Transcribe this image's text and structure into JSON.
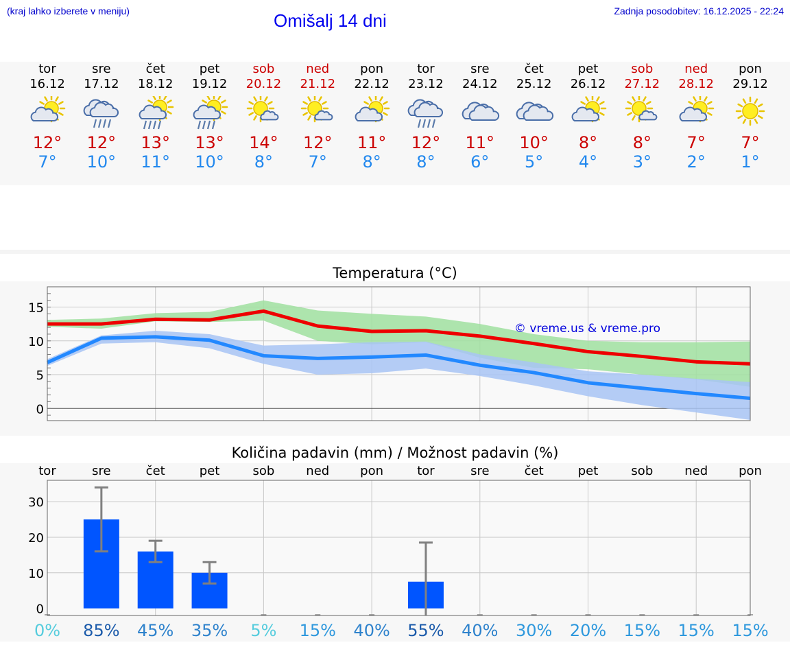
{
  "header": {
    "hint": "(kraj lahko izberete v meniju)",
    "title": "Omišalj 14 dni",
    "updated": "Zadnja posodobitev: 16.12.2025 - 22:24"
  },
  "days": [
    {
      "name": "tor",
      "date": "16.12",
      "icon": "sun-cloud-icon",
      "max": "12°",
      "min": "7°",
      "weekend": false
    },
    {
      "name": "sre",
      "date": "17.12",
      "icon": "cloud-rain-icon",
      "max": "12°",
      "min": "10°",
      "weekend": false
    },
    {
      "name": "čet",
      "date": "18.12",
      "icon": "sun-cloud-rain-icon",
      "max": "13°",
      "min": "11°",
      "weekend": false
    },
    {
      "name": "pet",
      "date": "19.12",
      "icon": "sun-cloud-rain-icon",
      "max": "13°",
      "min": "10°",
      "weekend": false
    },
    {
      "name": "sob",
      "date": "20.12",
      "icon": "sun-small-cloud-icon",
      "max": "14°",
      "min": "8°",
      "weekend": true
    },
    {
      "name": "ned",
      "date": "21.12",
      "icon": "sun-small-cloud-icon",
      "max": "12°",
      "min": "7°",
      "weekend": true
    },
    {
      "name": "pon",
      "date": "22.12",
      "icon": "sun-cloud-icon",
      "max": "11°",
      "min": "8°",
      "weekend": false
    },
    {
      "name": "tor",
      "date": "23.12",
      "icon": "cloud-rain-icon",
      "max": "12°",
      "min": "8°",
      "weekend": false
    },
    {
      "name": "sre",
      "date": "24.12",
      "icon": "cloud-icon",
      "max": "11°",
      "min": "6°",
      "weekend": false
    },
    {
      "name": "čet",
      "date": "25.12",
      "icon": "cloud-icon",
      "max": "10°",
      "min": "5°",
      "weekend": false
    },
    {
      "name": "pet",
      "date": "26.12",
      "icon": "sun-cloud-icon",
      "max": "8°",
      "min": "4°",
      "weekend": false
    },
    {
      "name": "sob",
      "date": "27.12",
      "icon": "sun-small-cloud-icon",
      "max": "8°",
      "min": "3°",
      "weekend": true
    },
    {
      "name": "ned",
      "date": "28.12",
      "icon": "sun-cloud-icon",
      "max": "7°",
      "min": "2°",
      "weekend": true
    },
    {
      "name": "pon",
      "date": "29.12",
      "icon": "sun-icon",
      "max": "7°",
      "min": "1°",
      "weekend": false
    }
  ],
  "colors": {
    "max_line": "#ee0000",
    "max_band": "#a0e0a0",
    "min_line": "#2288ff",
    "min_band": "#a8c4f4",
    "bar": "#0055ff",
    "error": "#808080",
    "grid": "#c8c8c8",
    "weekend": "#cc0000"
  },
  "chart_data": [
    {
      "type": "line",
      "title": "Temperatura (°C)",
      "watermark": "© vreme.us & vreme.pro",
      "yticks": [
        0,
        5,
        10,
        15
      ],
      "ylim": [
        -1.8,
        18
      ],
      "series": [
        {
          "name": "max",
          "values": [
            12.5,
            12.5,
            13.2,
            13.1,
            14.4,
            12.2,
            11.4,
            11.5,
            10.7,
            9.6,
            8.4,
            7.7,
            6.9,
            6.6
          ],
          "band_low": [
            12.1,
            11.8,
            12.9,
            12.8,
            13.0,
            10.0,
            9.5,
            9.8,
            7.5,
            6.0,
            5.8,
            5.0,
            4.3,
            3.2
          ],
          "band_high": [
            13.1,
            13.3,
            14.1,
            14.3,
            16.0,
            14.5,
            14.0,
            13.6,
            12.5,
            11.0,
            10.0,
            9.8,
            9.8,
            9.9
          ]
        },
        {
          "name": "min",
          "values": [
            6.8,
            10.4,
            10.6,
            10.1,
            7.8,
            7.4,
            7.6,
            7.9,
            6.4,
            5.3,
            3.8,
            3.0,
            2.2,
            1.5
          ],
          "band_low": [
            6.3,
            9.6,
            9.8,
            8.9,
            6.6,
            5.0,
            5.2,
            5.9,
            4.8,
            3.4,
            1.8,
            0.5,
            -0.6,
            -1.7
          ],
          "band_high": [
            7.3,
            10.8,
            11.5,
            11.0,
            9.3,
            9.5,
            9.8,
            9.9,
            8.0,
            6.8,
            5.5,
            5.0,
            4.4,
            3.9
          ]
        }
      ]
    },
    {
      "type": "bar",
      "title": "Količina padavin (mm) / Možnost padavin (%)",
      "categories": [
        "tor",
        "sre",
        "čet",
        "pet",
        "sob",
        "ned",
        "pon",
        "tor",
        "sre",
        "čet",
        "pet",
        "sob",
        "ned",
        "pon"
      ],
      "values": [
        0,
        25,
        16,
        10,
        0,
        0,
        0,
        7.5,
        0,
        0,
        0,
        0,
        0,
        0
      ],
      "err_low": [
        0,
        16,
        13,
        7,
        0,
        0,
        0,
        0,
        0,
        0,
        0,
        0,
        0,
        0
      ],
      "err_high": [
        0,
        34,
        19,
        13,
        0,
        0,
        0,
        18.5,
        0,
        0,
        0,
        0,
        0,
        0
      ],
      "probabilities": [
        "0%",
        "85%",
        "45%",
        "35%",
        "5%",
        "15%",
        "40%",
        "55%",
        "40%",
        "30%",
        "20%",
        "15%",
        "15%",
        "15%"
      ],
      "prob_colors": [
        "#55ccdd",
        "#1a5aaa",
        "#2e82cc",
        "#2e82cc",
        "#55ccdd",
        "#2e98dd",
        "#2e82cc",
        "#1a5aaa",
        "#2e82cc",
        "#2e98dd",
        "#2e98dd",
        "#2e98dd",
        "#2e98dd",
        "#2e98dd"
      ],
      "yticks": [
        0,
        10,
        20,
        30
      ],
      "ylim": [
        -2,
        36
      ]
    }
  ]
}
